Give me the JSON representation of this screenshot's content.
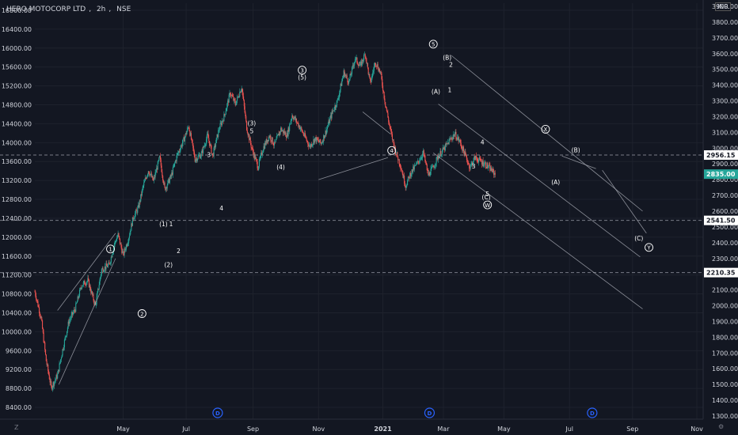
{
  "header": {
    "symbol": "HERO MOTOCORP LTD",
    "interval": "2h",
    "exchange": "NSE",
    "currency": "INR"
  },
  "colors": {
    "background": "#131722",
    "up": "#26a69a",
    "down": "#ef5350",
    "grid": "#1e222d",
    "hline": "#787b86",
    "last_price": "#26a69a",
    "axis_text": "#d1d4dc",
    "dividend": "#2962ff"
  },
  "controls": {
    "zoom_label": "Z",
    "settings_icon": "gear-icon"
  },
  "chart_data": {
    "type": "candlestick",
    "title": "HERO MOTOCORP LTD, 2h, NSE",
    "x_labels": [
      "May",
      "Jul",
      "Sep",
      "Nov",
      "2021",
      "Mar",
      "May",
      "Jul",
      "Sep",
      "Nov"
    ],
    "left_axis": {
      "ticks": [
        "16800.00",
        "16400.00",
        "16000.00",
        "15600.00",
        "15200.00",
        "14800.00",
        "14400.00",
        "14000.00",
        "13600.00",
        "13200.00",
        "12800.00",
        "12400.00",
        "12000.00",
        "11600.00",
        "11200.00",
        "10800.00",
        "10400.00",
        "10000.00",
        "9600.00",
        "9200.00",
        "8800.00",
        "8400.00"
      ],
      "range": [
        8150,
        16950
      ]
    },
    "right_axis": {
      "unit": "INR",
      "ticks": [
        "3900.00",
        "3800.00",
        "3700.00",
        "3600.00",
        "3500.00",
        "3400.00",
        "3300.00",
        "3200.00",
        "3100.00",
        "3000.00",
        "2900.00",
        "2800.00",
        "2700.00",
        "2600.00",
        "2500.00",
        "2400.00",
        "2300.00",
        "2200.00",
        "2100.00",
        "2000.00",
        "1900.00",
        "1800.00",
        "1700.00",
        "1600.00",
        "1500.00",
        "1400.00",
        "1300.00"
      ],
      "range": [
        1280,
        3920
      ]
    },
    "price_tags": [
      {
        "value": "2956.15",
        "kind": "level"
      },
      {
        "value": "2835.00",
        "kind": "last"
      },
      {
        "value": "2541.50",
        "kind": "level"
      },
      {
        "value": "2210.35",
        "kind": "level"
      }
    ],
    "price_path": [
      {
        "t": 0,
        "p": 2090
      },
      {
        "t": 5,
        "p": 1920
      },
      {
        "t": 9,
        "p": 1650
      },
      {
        "t": 13,
        "p": 1480
      },
      {
        "t": 18,
        "p": 1560
      },
      {
        "t": 22,
        "p": 1720
      },
      {
        "t": 27,
        "p": 1900
      },
      {
        "t": 32,
        "p": 1980
      },
      {
        "t": 37,
        "p": 2130
      },
      {
        "t": 42,
        "p": 2160
      },
      {
        "t": 48,
        "p": 2000
      },
      {
        "t": 53,
        "p": 2230
      },
      {
        "t": 59,
        "p": 2260
      },
      {
        "t": 63,
        "p": 2390
      },
      {
        "t": 66,
        "p": 2450
      },
      {
        "t": 70,
        "p": 2320
      },
      {
        "t": 74,
        "p": 2420
      },
      {
        "t": 78,
        "p": 2560
      },
      {
        "t": 82,
        "p": 2620
      },
      {
        "t": 86,
        "p": 2760
      },
      {
        "t": 90,
        "p": 2860
      },
      {
        "t": 94,
        "p": 2790
      },
      {
        "t": 99,
        "p": 2940
      },
      {
        "t": 103,
        "p": 2740
      },
      {
        "t": 108,
        "p": 2820
      },
      {
        "t": 113,
        "p": 2960
      },
      {
        "t": 118,
        "p": 3050
      },
      {
        "t": 122,
        "p": 3140
      },
      {
        "t": 127,
        "p": 2930
      },
      {
        "t": 132,
        "p": 2960
      },
      {
        "t": 137,
        "p": 3080
      },
      {
        "t": 141,
        "p": 2950
      },
      {
        "t": 146,
        "p": 3120
      },
      {
        "t": 150,
        "p": 3200
      },
      {
        "t": 155,
        "p": 3350
      },
      {
        "t": 159,
        "p": 3280
      },
      {
        "t": 164,
        "p": 3390
      },
      {
        "t": 168,
        "p": 3130
      },
      {
        "t": 172,
        "p": 3000
      },
      {
        "t": 177,
        "p": 2880
      },
      {
        "t": 181,
        "p": 3000
      },
      {
        "t": 186,
        "p": 3080
      },
      {
        "t": 190,
        "p": 3020
      },
      {
        "t": 195,
        "p": 3120
      },
      {
        "t": 200,
        "p": 3080
      },
      {
        "t": 204,
        "p": 3210
      },
      {
        "t": 209,
        "p": 3150
      },
      {
        "t": 213,
        "p": 3090
      },
      {
        "t": 218,
        "p": 3010
      },
      {
        "t": 222,
        "p": 3060
      },
      {
        "t": 227,
        "p": 3030
      },
      {
        "t": 231,
        "p": 3110
      },
      {
        "t": 236,
        "p": 3230
      },
      {
        "t": 240,
        "p": 3300
      },
      {
        "t": 245,
        "p": 3480
      },
      {
        "t": 249,
        "p": 3420
      },
      {
        "t": 254,
        "p": 3570
      },
      {
        "t": 258,
        "p": 3520
      },
      {
        "t": 262,
        "p": 3600
      },
      {
        "t": 266,
        "p": 3410
      },
      {
        "t": 270,
        "p": 3550
      },
      {
        "t": 274,
        "p": 3480
      },
      {
        "t": 278,
        "p": 3280
      },
      {
        "t": 282,
        "p": 3110
      },
      {
        "t": 286,
        "p": 2980
      },
      {
        "t": 290,
        "p": 2890
      },
      {
        "t": 294,
        "p": 2760
      },
      {
        "t": 298,
        "p": 2840
      },
      {
        "t": 303,
        "p": 2900
      },
      {
        "t": 308,
        "p": 2970
      },
      {
        "t": 312,
        "p": 2830
      },
      {
        "t": 316,
        "p": 2880
      },
      {
        "t": 320,
        "p": 2950
      },
      {
        "t": 325,
        "p": 3000
      },
      {
        "t": 329,
        "p": 3050
      },
      {
        "t": 333,
        "p": 3090
      },
      {
        "t": 337,
        "p": 3040
      },
      {
        "t": 341,
        "p": 2960
      },
      {
        "t": 345,
        "p": 2880
      },
      {
        "t": 349,
        "p": 2940
      },
      {
        "t": 353,
        "p": 2920
      },
      {
        "t": 357,
        "p": 2900
      },
      {
        "t": 361,
        "p": 2870
      },
      {
        "t": 365,
        "p": 2835
      }
    ],
    "wave_labels": [
      {
        "text": "1",
        "circled": true,
        "t": 60,
        "p": 2360
      },
      {
        "text": "2",
        "circled": true,
        "t": 85,
        "p": 1950
      },
      {
        "text": "(1)",
        "t": 102,
        "p": 2520
      },
      {
        "text": "1",
        "t": 108,
        "p": 2520
      },
      {
        "text": "2",
        "t": 114,
        "p": 2350
      },
      {
        "text": "(2)",
        "t": 106,
        "p": 2260
      },
      {
        "text": "3",
        "t": 138,
        "p": 2960
      },
      {
        "text": "4",
        "t": 148,
        "p": 2620
      },
      {
        "text": "(3)",
        "t": 172,
        "p": 3160
      },
      {
        "text": "5",
        "t": 172,
        "p": 3110
      },
      {
        "text": "(4)",
        "t": 195,
        "p": 2880
      },
      {
        "text": "3",
        "circled": true,
        "t": 212,
        "p": 3495
      },
      {
        "text": "(5)",
        "t": 212,
        "p": 3450
      },
      {
        "text": "4",
        "circled": true,
        "t": 283,
        "p": 2985
      },
      {
        "text": "5",
        "circled": true,
        "t": 316,
        "p": 3660
      },
      {
        "text": "(B)",
        "t": 327,
        "p": 3575
      },
      {
        "text": "2",
        "t": 330,
        "p": 3530
      },
      {
        "text": "(A)",
        "t": 318,
        "p": 3360
      },
      {
        "text": "1",
        "t": 329,
        "p": 3370
      },
      {
        "text": "4",
        "t": 355,
        "p": 3040
      },
      {
        "text": "3",
        "t": 348,
        "p": 2885
      },
      {
        "text": "5",
        "t": 359,
        "p": 2710
      },
      {
        "text": "(C)",
        "t": 358,
        "p": 2690
      },
      {
        "text": "W",
        "circled": true,
        "t": 359,
        "p": 2640
      },
      {
        "text": "X",
        "circled": true,
        "t": 405,
        "p": 3120
      },
      {
        "text": "(B)",
        "t": 429,
        "p": 2990
      },
      {
        "text": "(A)",
        "t": 413,
        "p": 2785
      },
      {
        "text": "(C)",
        "t": 479,
        "p": 2430
      },
      {
        "text": "Y",
        "circled": true,
        "t": 487,
        "p": 2370
      }
    ],
    "trend_lines": [
      {
        "from": {
          "t": 19,
          "p": 1500
        },
        "to": {
          "t": 64,
          "p": 2300
        }
      },
      {
        "from": {
          "t": 18,
          "p": 1970
        },
        "to": {
          "t": 64,
          "p": 2460
        }
      },
      {
        "from": {
          "t": 225,
          "p": 2800
        },
        "to": {
          "t": 280,
          "p": 2940
        }
      },
      {
        "from": {
          "t": 260,
          "p": 3230
        },
        "to": {
          "t": 282,
          "p": 3090
        }
      },
      {
        "from": {
          "t": 330,
          "p": 3590
        },
        "to": {
          "t": 482,
          "p": 2600
        }
      },
      {
        "from": {
          "t": 320,
          "p": 3280
        },
        "to": {
          "t": 480,
          "p": 2310
        }
      },
      {
        "from": {
          "t": 316,
          "p": 2970
        },
        "to": {
          "t": 482,
          "p": 1980
        }
      },
      {
        "from": {
          "t": 450,
          "p": 2860
        },
        "to": {
          "t": 485,
          "p": 2460
        }
      },
      {
        "from": {
          "t": 418,
          "p": 2950
        },
        "to": {
          "t": 445,
          "p": 2870
        }
      }
    ],
    "dividend_markers": [
      {
        "label": "D",
        "t": 145
      },
      {
        "label": "D",
        "t": 313
      },
      {
        "label": "D",
        "t": 442
      }
    ],
    "x_range": [
      0,
      530
    ],
    "x_label_positions": [
      70,
      120,
      173,
      225,
      276,
      324,
      372,
      424,
      474,
      525
    ]
  }
}
